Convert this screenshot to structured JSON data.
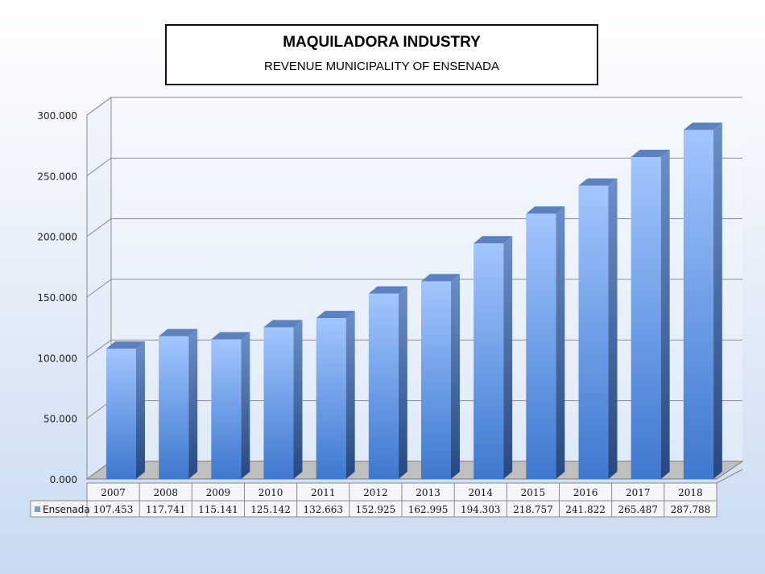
{
  "chart_data": {
    "type": "bar",
    "title": "MAQUILADORA INDUSTRY",
    "subtitle": "REVENUE MUNICIPALITY OF ENSENADA",
    "categories": [
      "2007",
      "2008",
      "2009",
      "2010",
      "2011",
      "2012",
      "2013",
      "2014",
      "2015",
      "2016",
      "2017",
      "2018"
    ],
    "series": [
      {
        "name": "Ensenada",
        "values": [
          107.453,
          117.741,
          115.141,
          125.142,
          132.663,
          152.925,
          162.995,
          194.303,
          218.757,
          241.822,
          265.487,
          287.788
        ],
        "labels": [
          "107.453",
          "117.741",
          "115.141",
          "125.142",
          "132.663",
          "152.925",
          "162.995",
          "194.303",
          "218.757",
          "241.822",
          "265.487",
          "287.788"
        ]
      }
    ],
    "ylim": [
      0,
      300
    ],
    "yticks": [
      0,
      50,
      100,
      150,
      200,
      250,
      300
    ],
    "ytick_labels": [
      "0.000",
      "50.000",
      "100.000",
      "150.000",
      "200.000",
      "250.000",
      "300.000"
    ],
    "grid": true,
    "legend": "data-table",
    "bar_color": "#6e9fe8"
  }
}
